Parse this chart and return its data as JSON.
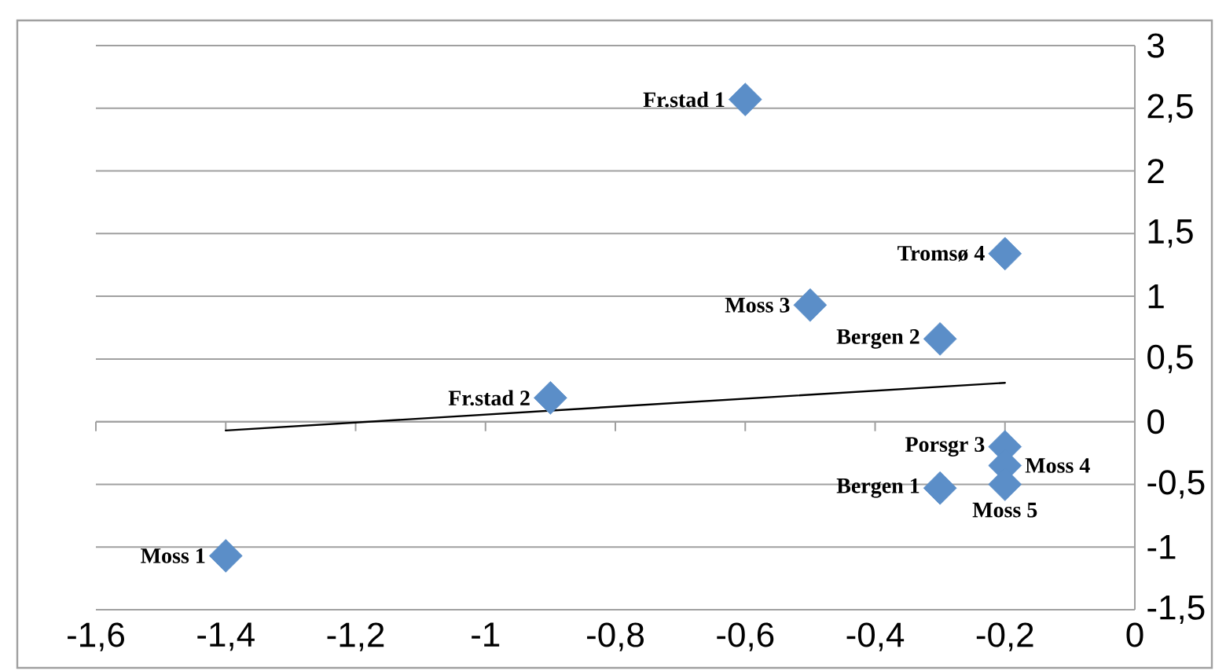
{
  "chart_data": {
    "type": "scatter",
    "x": [
      -1.4,
      -0.9,
      -0.6,
      -0.5,
      -0.3,
      -0.3,
      -0.2,
      -0.2,
      -0.2,
      -0.2
    ],
    "series": [
      {
        "type": "scatter",
        "color": "#5b8ec8",
        "values": [
          -1.07,
          0.19,
          2.57,
          0.93,
          0.66,
          -0.53,
          1.34,
          -0.2,
          -0.35,
          -0.5
        ]
      },
      {
        "type": "line",
        "x": [
          -1.4,
          -0.2
        ],
        "values": [
          -0.07,
          0.31
        ],
        "color": "#000000",
        "marker": "none"
      }
    ],
    "annotations": [
      {
        "text": "Moss 1",
        "x": -1.4,
        "y": -1.07
      },
      {
        "text": "Fr.stad 2",
        "x": -0.9,
        "y": 0.19
      },
      {
        "text": "Fr.stad 1",
        "x": -0.6,
        "y": 2.57
      },
      {
        "text": "Moss 3",
        "x": -0.5,
        "y": 0.93
      },
      {
        "text": "Bergen 2",
        "x": -0.3,
        "y": 0.66
      },
      {
        "text": "Bergen 1",
        "x": -0.3,
        "y": -0.53
      },
      {
        "text": "Tromsø 4",
        "x": -0.2,
        "y": 1.34
      },
      {
        "text": "Porsgr 3",
        "x": -0.2,
        "y": -0.2
      },
      {
        "text": "Moss 4",
        "x": -0.2,
        "y": -0.35
      },
      {
        "text": "Moss 5",
        "x": -0.2,
        "y": -0.5
      }
    ],
    "xlim": [
      -1.6,
      0
    ],
    "xticks": [
      {
        "value": -1.6,
        "label": "-1,6"
      },
      {
        "value": -1.4,
        "label": "-1,4"
      },
      {
        "value": -1.2,
        "label": "-1,2"
      },
      -1,
      {
        "value": -0.8,
        "label": "-0,8"
      },
      {
        "value": -0.6,
        "label": "-0,6"
      },
      {
        "value": -0.4,
        "label": "-0,4"
      },
      {
        "value": -0.2,
        "label": "-0,2"
      },
      0
    ],
    "ylim": [
      -1.5,
      3
    ],
    "yticks": [
      {
        "value": -1.5,
        "label": "-1,5"
      },
      -1,
      {
        "value": -0.5,
        "label": "-0,5"
      },
      0,
      {
        "value": 0.5,
        "label": "0,5"
      },
      1,
      {
        "value": 1.5,
        "label": "1,5"
      },
      2,
      {
        "value": 2.5,
        "label": "2,5"
      },
      3
    ],
    "grid": "y",
    "marker": "diamond"
  }
}
